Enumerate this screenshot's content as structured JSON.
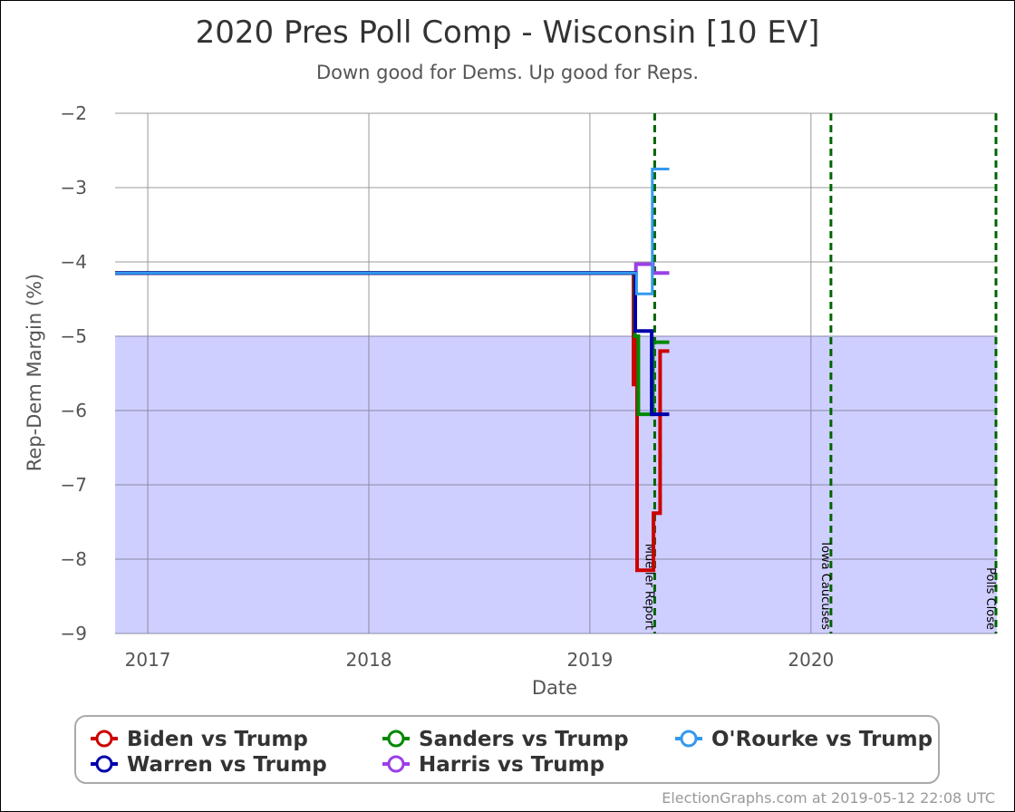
{
  "chart_data": {
    "type": "line",
    "title": "2020 Pres Poll Comp - Wisconsin [10 EV]",
    "subtitle": "Down good for Dems. Up good for Reps.",
    "xlabel": "Date",
    "ylabel": "Rep-Dem Margin (%)",
    "xlim": [
      "2016-11-08",
      "2020-11-03"
    ],
    "ylim": [
      -9,
      -2
    ],
    "x_ticks": [
      "2017",
      "2018",
      "2019",
      "2020"
    ],
    "x_tick_dates": [
      "2017-01-01",
      "2018-01-01",
      "2019-01-01",
      "2020-01-01"
    ],
    "y_ticks": [
      -2,
      -3,
      -4,
      -5,
      -6,
      -7,
      -8,
      -9
    ],
    "grid": true,
    "shaded_band": {
      "y_from": -9,
      "y_to": -5,
      "color": "#ccccff"
    },
    "events": [
      {
        "label": "Mueller Report",
        "date": "2019-04-18"
      },
      {
        "label": "Iowa Caucuses",
        "date": "2020-02-03"
      },
      {
        "label": "Polls Close",
        "date": "2020-11-03"
      }
    ],
    "event_color": "#006400",
    "series": [
      {
        "name": "Harris vs Trump",
        "color": "#9b3fe6",
        "width": 4,
        "points": [
          [
            "2016-11-08",
            -4.15
          ],
          [
            "2019-03-18",
            -4.15
          ],
          [
            "2019-03-18",
            -4.03
          ],
          [
            "2019-04-15",
            -4.03
          ],
          [
            "2019-04-15",
            -4.15
          ],
          [
            "2019-05-12",
            -4.15
          ]
        ]
      },
      {
        "name": "Biden vs Trump",
        "color": "#cc0000",
        "width": 4,
        "points": [
          [
            "2016-11-08",
            -4.15
          ],
          [
            "2019-03-14",
            -4.15
          ],
          [
            "2019-03-14",
            -5.65
          ],
          [
            "2019-03-16",
            -5.65
          ],
          [
            "2019-03-16",
            -5.0
          ],
          [
            "2019-03-20",
            -5.0
          ],
          [
            "2019-03-20",
            -8.15
          ],
          [
            "2019-04-16",
            -8.15
          ],
          [
            "2019-04-16",
            -7.38
          ],
          [
            "2019-04-27",
            -7.38
          ],
          [
            "2019-04-27",
            -5.2
          ],
          [
            "2019-05-12",
            -5.2
          ]
        ]
      },
      {
        "name": "Sanders vs Trump",
        "color": "#008800",
        "width": 4,
        "points": [
          [
            "2016-11-08",
            -4.15
          ],
          [
            "2019-03-16",
            -4.15
          ],
          [
            "2019-03-16",
            -5.0
          ],
          [
            "2019-03-22",
            -5.0
          ],
          [
            "2019-03-22",
            -6.05
          ],
          [
            "2019-04-15",
            -6.05
          ],
          [
            "2019-04-15",
            -5.08
          ],
          [
            "2019-05-12",
            -5.08
          ]
        ]
      },
      {
        "name": "Warren vs Trump",
        "color": "#0000aa",
        "width": 4,
        "points": [
          [
            "2016-11-08",
            -4.15
          ],
          [
            "2019-03-17",
            -4.15
          ],
          [
            "2019-03-17",
            -4.93
          ],
          [
            "2019-04-13",
            -4.93
          ],
          [
            "2019-04-13",
            -6.05
          ],
          [
            "2019-05-12",
            -6.05
          ]
        ]
      },
      {
        "name": "O'Rourke vs Trump",
        "color": "#3399ee",
        "width": 3,
        "points": [
          [
            "2016-11-08",
            -4.15
          ],
          [
            "2019-03-19",
            -4.15
          ],
          [
            "2019-03-19",
            -4.43
          ],
          [
            "2019-04-14",
            -4.43
          ],
          [
            "2019-04-14",
            -2.75
          ],
          [
            "2019-05-12",
            -2.75
          ]
        ]
      }
    ],
    "legend": {
      "placement": "bottom",
      "entries": [
        "Biden vs Trump",
        "Sanders vs Trump",
        "O'Rourke vs Trump",
        "Warren vs Trump",
        "Harris vs Trump"
      ]
    }
  },
  "credit": "ElectionGraphs.com at 2019-05-12 22:08 UTC",
  "colors": {
    "grid": "#999999",
    "background": "#ffffff"
  }
}
